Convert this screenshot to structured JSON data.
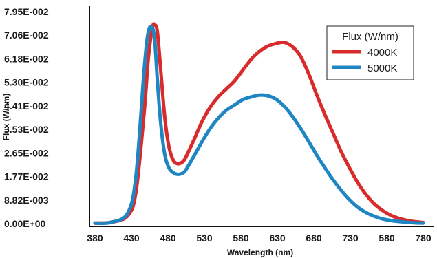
{
  "chart_data": {
    "type": "line",
    "title": "",
    "xlabel": "Wavelength (nm)",
    "ylabel": "Flux (W/nm)",
    "x_tick_labels": [
      "380",
      "430",
      "480",
      "530",
      "580",
      "630",
      "680",
      "730",
      "580",
      "780"
    ],
    "y_tick_labels": [
      "0.00E+00",
      "8.82E-003",
      "1.77E-002",
      "2.65E-002",
      "3.53E-002",
      "4.41E-002",
      "5.30E-002",
      "6.18E-002",
      "7.06E-002",
      "7.95E-002"
    ],
    "xlim": [
      380,
      780
    ],
    "ylim": [
      0,
      0.0795
    ],
    "grid": false,
    "legend": {
      "title": "Flux (W/nm)",
      "position": "top-right"
    },
    "x": [
      380,
      400,
      420,
      430,
      440,
      445,
      450,
      453,
      456,
      460,
      465,
      470,
      475,
      480,
      485,
      490,
      500,
      510,
      520,
      530,
      540,
      550,
      560,
      570,
      580,
      590,
      600,
      610,
      620,
      630,
      640,
      650,
      660,
      670,
      680,
      690,
      700,
      710,
      720,
      730,
      740,
      750,
      760,
      770,
      780
    ],
    "series": [
      {
        "name": "4000K",
        "color": "#d92b2b",
        "values": [
          0.0002,
          0.0005,
          0.003,
          0.012,
          0.042,
          0.062,
          0.0735,
          0.0745,
          0.072,
          0.058,
          0.04,
          0.029,
          0.024,
          0.0225,
          0.0228,
          0.0245,
          0.031,
          0.038,
          0.0435,
          0.0475,
          0.0505,
          0.0535,
          0.0575,
          0.0615,
          0.0645,
          0.0665,
          0.0675,
          0.068,
          0.0665,
          0.063,
          0.0565,
          0.0485,
          0.041,
          0.034,
          0.027,
          0.021,
          0.0155,
          0.011,
          0.0075,
          0.005,
          0.0032,
          0.002,
          0.0012,
          0.0007,
          0.0004
        ]
      },
      {
        "name": "5000K",
        "color": "#1f86c3",
        "values": [
          0.0002,
          0.0005,
          0.004,
          0.018,
          0.058,
          0.072,
          0.0735,
          0.068,
          0.054,
          0.038,
          0.026,
          0.021,
          0.0192,
          0.0185,
          0.0187,
          0.0198,
          0.025,
          0.0305,
          0.0355,
          0.0395,
          0.0425,
          0.0445,
          0.0465,
          0.0475,
          0.0482,
          0.048,
          0.0468,
          0.0442,
          0.0405,
          0.036,
          0.031,
          0.0258,
          0.021,
          0.0165,
          0.0125,
          0.009,
          0.0062,
          0.0042,
          0.0028,
          0.0018,
          0.0012,
          0.0008,
          0.0005,
          0.0003,
          0.0002
        ]
      }
    ]
  }
}
